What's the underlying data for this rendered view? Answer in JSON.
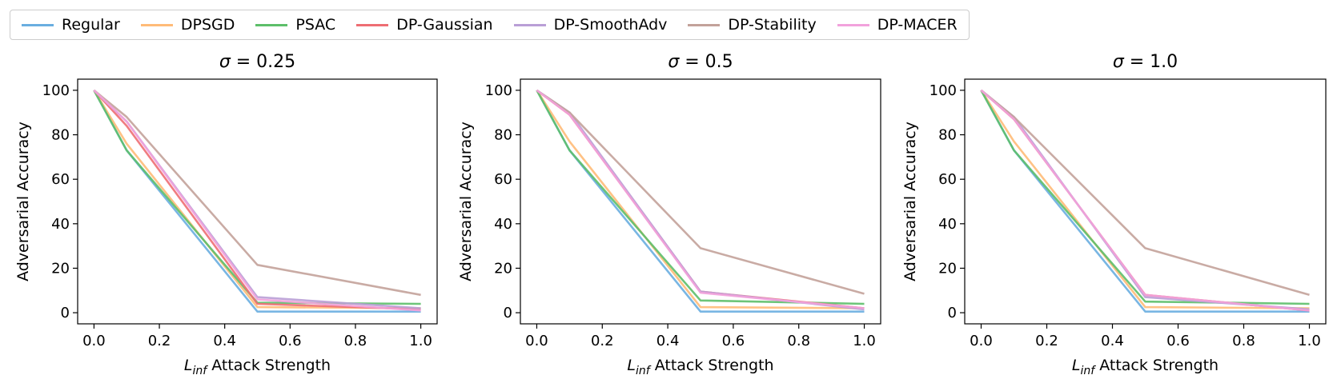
{
  "legend": {
    "entries": [
      {
        "name": "Regular",
        "color": "#6aaee0"
      },
      {
        "name": "DPSGD",
        "color": "#ffbb78"
      },
      {
        "name": "PSAC",
        "color": "#5dbf6a"
      },
      {
        "name": "DP-Gaussian",
        "color": "#ee6e73"
      },
      {
        "name": "DP-SmoothAdv",
        "color": "#b99fd6"
      },
      {
        "name": "DP-Stability",
        "color": "#c3a29a"
      },
      {
        "name": "DP-MACER",
        "color": "#f2a2dc"
      }
    ]
  },
  "chart_data": [
    {
      "type": "line",
      "title": "σ = 0.25",
      "sigma_symbol": "σ",
      "sigma_value": "= 0.25",
      "xlabel_sym": "L",
      "xlabel_sub": "inf",
      "xlabel_rest": " Attack Strength",
      "ylabel": "Adversarial Accuracy",
      "x": [
        0.0,
        0.1,
        0.5,
        1.0
      ],
      "xlim": [
        -0.05,
        1.05
      ],
      "ylim": [
        -5,
        105
      ],
      "xticks": [
        "0.0",
        "0.2",
        "0.4",
        "0.6",
        "0.8",
        "1.0"
      ],
      "xtick_values": [
        0.0,
        0.2,
        0.4,
        0.6,
        0.8,
        1.0
      ],
      "yticks": [
        "0",
        "20",
        "40",
        "60",
        "80",
        "100"
      ],
      "ytick_values": [
        0,
        20,
        40,
        60,
        80,
        100
      ],
      "series": [
        {
          "name": "Regular",
          "color": "#6aaee0",
          "values": [
            100,
            73,
            0.5,
            0.5
          ]
        },
        {
          "name": "DPSGD",
          "color": "#ffbb78",
          "values": [
            100,
            76,
            2.5,
            2
          ]
        },
        {
          "name": "PSAC",
          "color": "#5dbf6a",
          "values": [
            100,
            73,
            4.5,
            4
          ]
        },
        {
          "name": "DP-Gaussian",
          "color": "#ee6e73",
          "values": [
            100,
            84,
            4,
            1.5
          ]
        },
        {
          "name": "DP-SmoothAdv",
          "color": "#b99fd6",
          "values": [
            100,
            86,
            7,
            2
          ]
        },
        {
          "name": "DP-Stability",
          "color": "#c3a29a",
          "values": [
            100,
            88,
            21.5,
            8
          ]
        },
        {
          "name": "DP-MACER",
          "color": "#f2a2dc",
          "values": [
            100,
            86,
            6,
            1
          ]
        }
      ]
    },
    {
      "type": "line",
      "title": "σ = 0.5",
      "sigma_symbol": "σ",
      "sigma_value": "= 0.5",
      "xlabel_sym": "L",
      "xlabel_sub": "inf",
      "xlabel_rest": " Attack Strength",
      "ylabel": "Adversarial Accuracy",
      "x": [
        0.0,
        0.1,
        0.5,
        1.0
      ],
      "xlim": [
        -0.05,
        1.05
      ],
      "ylim": [
        -5,
        105
      ],
      "xticks": [
        "0.0",
        "0.2",
        "0.4",
        "0.6",
        "0.8",
        "1.0"
      ],
      "xtick_values": [
        0.0,
        0.2,
        0.4,
        0.6,
        0.8,
        1.0
      ],
      "yticks": [
        "0",
        "20",
        "40",
        "60",
        "80",
        "100"
      ],
      "ytick_values": [
        0,
        20,
        40,
        60,
        80,
        100
      ],
      "series": [
        {
          "name": "Regular",
          "color": "#6aaee0",
          "values": [
            100,
            73,
            0.5,
            0.5
          ]
        },
        {
          "name": "DPSGD",
          "color": "#ffbb78",
          "values": [
            100,
            77,
            2.5,
            2
          ]
        },
        {
          "name": "PSAC",
          "color": "#5dbf6a",
          "values": [
            100,
            73,
            5.5,
            4
          ]
        },
        {
          "name": "DP-Gaussian",
          "color": "#ee6e73",
          "values": [
            100,
            89,
            9.5,
            2
          ]
        },
        {
          "name": "DP-SmoothAdv",
          "color": "#b99fd6",
          "values": [
            100,
            90,
            9.5,
            1.5
          ]
        },
        {
          "name": "DP-Stability",
          "color": "#c3a29a",
          "values": [
            100,
            90,
            29,
            8.5
          ]
        },
        {
          "name": "DP-MACER",
          "color": "#f2a2dc",
          "values": [
            100,
            89,
            9,
            2
          ]
        }
      ]
    },
    {
      "type": "line",
      "title": "σ = 1.0",
      "sigma_symbol": "σ",
      "sigma_value": "= 1.0",
      "xlabel_sym": "L",
      "xlabel_sub": "inf",
      "xlabel_rest": " Attack Strength",
      "ylabel": "Adversarial Accuracy",
      "x": [
        0.0,
        0.1,
        0.5,
        1.0
      ],
      "xlim": [
        -0.05,
        1.05
      ],
      "ylim": [
        -5,
        105
      ],
      "xticks": [
        "0.0",
        "0.2",
        "0.4",
        "0.6",
        "0.8",
        "1.0"
      ],
      "xtick_values": [
        0.0,
        0.2,
        0.4,
        0.6,
        0.8,
        1.0
      ],
      "yticks": [
        "0",
        "20",
        "40",
        "60",
        "80",
        "100"
      ],
      "ytick_values": [
        0,
        20,
        40,
        60,
        80,
        100
      ],
      "series": [
        {
          "name": "Regular",
          "color": "#6aaee0",
          "values": [
            100,
            73,
            0.5,
            0.5
          ]
        },
        {
          "name": "DPSGD",
          "color": "#ffbb78",
          "values": [
            100,
            77,
            2.5,
            2
          ]
        },
        {
          "name": "PSAC",
          "color": "#5dbf6a",
          "values": [
            100,
            73,
            5,
            4
          ]
        },
        {
          "name": "DP-Gaussian",
          "color": "#ee6e73",
          "values": [
            100,
            87,
            8,
            1
          ]
        },
        {
          "name": "DP-SmoothAdv",
          "color": "#b99fd6",
          "values": [
            100,
            88,
            7,
            1.5
          ]
        },
        {
          "name": "DP-Stability",
          "color": "#c3a29a",
          "values": [
            100,
            88,
            29,
            8
          ]
        },
        {
          "name": "DP-MACER",
          "color": "#f2a2dc",
          "values": [
            100,
            87,
            8,
            1
          ]
        }
      ]
    }
  ]
}
